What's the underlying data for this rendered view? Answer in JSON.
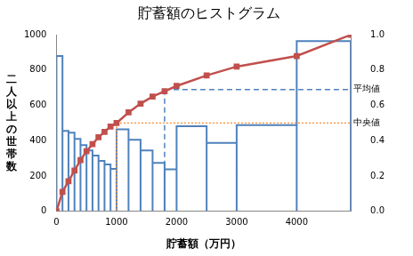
{
  "chart_data": {
    "type": "histogram",
    "title": "貯蓄額のヒストグラム",
    "x_label": "貯蓄額（万円）",
    "y_label": "二人以上の世帯数",
    "bins": [
      0,
      100,
      200,
      300,
      400,
      500,
      600,
      700,
      800,
      900,
      1000,
      1200,
      1400,
      1600,
      1800,
      2000,
      2500,
      3000,
      4000,
      4900
    ],
    "counts": [
      880,
      455,
      445,
      410,
      375,
      345,
      315,
      285,
      265,
      240,
      464,
      405,
      345,
      274,
      238,
      482,
      387,
      488,
      964
    ],
    "color": "#4f81bd",
    "cumulative": {
      "values": [
        0,
        0.11,
        0.17,
        0.23,
        0.29,
        0.34,
        0.38,
        0.42,
        0.45,
        0.48,
        0.5,
        0.56,
        0.61,
        0.65,
        0.68,
        0.71,
        0.77,
        0.82,
        0.88,
        1.0
      ],
      "color": "#c0504d",
      "marker": "square",
      "axis": "y2"
    },
    "annotations": [
      {
        "text": "平均値",
        "x": 1800,
        "y2": 0.69,
        "color": "#4f81bd",
        "line_style": "dashed"
      },
      {
        "text": "中央値",
        "x": 1000,
        "y2": 0.5,
        "color": "#f79646",
        "line_style": "dotted"
      }
    ],
    "xlim": [
      0,
      4900
    ],
    "xticks": [
      0,
      1000,
      2000,
      3000,
      4000
    ],
    "ylim": [
      0,
      1000
    ],
    "yticks": [
      0,
      200,
      400,
      600,
      800,
      1000
    ],
    "y2lim": [
      0,
      1
    ],
    "y2ticks": [
      {
        "value": 0,
        "label": "0.0"
      },
      {
        "value": 0.2,
        "label": "0.2"
      },
      {
        "value": 0.4,
        "label": "0.4"
      },
      {
        "value": 0.6,
        "label": "0.6"
      },
      {
        "value": 0.8,
        "label": "0.8"
      },
      {
        "value": 1,
        "label": "1.0"
      }
    ],
    "grid": false
  }
}
